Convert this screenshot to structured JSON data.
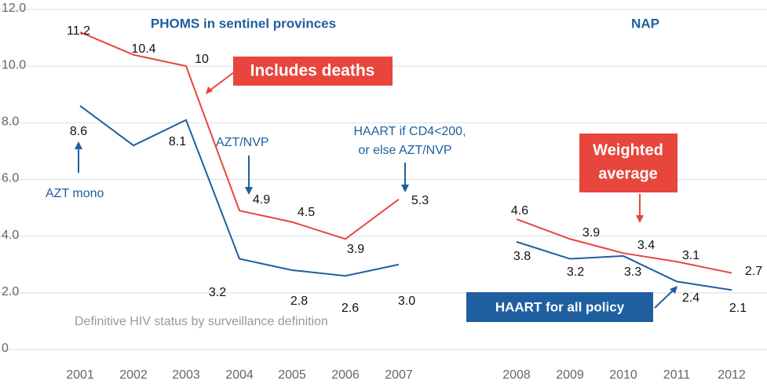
{
  "chart_data": {
    "type": "line",
    "title": "PHOMS in sentinel provinces",
    "subtitle": "NAP",
    "categories": [
      "2001",
      "2002",
      "2003",
      "2004",
      "2005",
      "2006",
      "2007",
      null,
      "2008",
      "2009",
      "2010",
      "2011",
      "2012"
    ],
    "series": [
      {
        "color": "#e8453c",
        "values": [
          11.2,
          10.4,
          10,
          4.9,
          4.5,
          3.9,
          5.3,
          null,
          4.6,
          3.9,
          3.4,
          3.1,
          2.7
        ]
      },
      {
        "color": "#1f5fa0",
        "values": [
          8.6,
          7.2,
          8.1,
          3.2,
          2.8,
          2.6,
          3.0,
          null,
          3.8,
          3.2,
          3.3,
          2.4,
          2.1
        ],
        "value_labels": [
          "8.6",
          null,
          "8.1",
          "3.2",
          "2.8",
          "2.6",
          "3.0",
          null,
          "3.8",
          "3.2",
          "3.3",
          "2.4",
          "2.1"
        ]
      }
    ],
    "ylim": [
      0,
      12
    ],
    "yticks": [
      0,
      {
        "value": 2,
        "label": "2.0"
      },
      {
        "value": 4,
        "label": "4.0"
      },
      {
        "value": 6,
        "label": "6.0"
      },
      {
        "value": 8,
        "label": "8.0"
      },
      {
        "value": 10,
        "label": "10.0"
      },
      {
        "value": 12,
        "label": "12.0"
      }
    ],
    "grid": true,
    "annotations": {
      "deaths": "Includes deaths",
      "weighted": [
        "Weighted",
        "average"
      ],
      "haart_all": "HAART for all policy",
      "azt_mono": "AZT mono",
      "azt_nvp": "AZT/NVP",
      "haart_cd4": [
        "HAART if CD4<200,",
        "or else AZT/NVP"
      ],
      "note": "Definitive HIV status by surveillance definition"
    }
  }
}
